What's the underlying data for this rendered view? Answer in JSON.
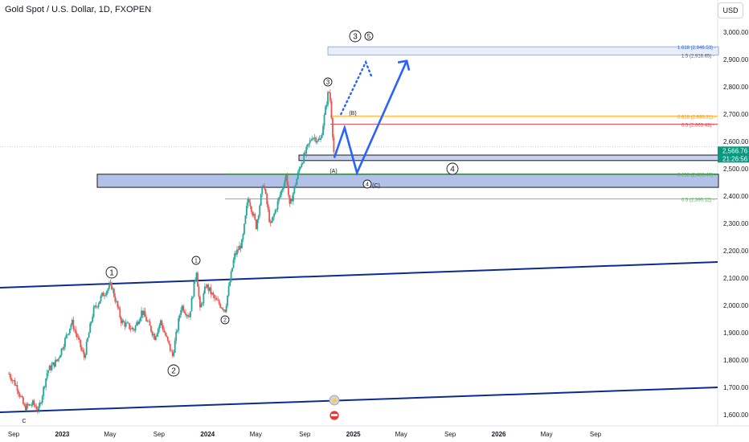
{
  "header": {
    "title": "Gold Spot / U.S. Dollar, 1D, FXOPEN",
    "currency_button": "USD"
  },
  "chart_data": {
    "type": "candlestick",
    "title": "Gold Spot / U.S. Dollar, 1D, FXOPEN",
    "xlabel": "",
    "ylabel": "",
    "ylim": [
      1590,
      3040
    ],
    "y_ticks": [
      "3,000.00",
      "2,900.00",
      "2,800.00",
      "2,700.00",
      "2,600.00",
      "2,500.00",
      "2,400.00",
      "2,300.00",
      "2,200.00",
      "2,100.00",
      "2,000.00",
      "1,900.00",
      "1,800.00",
      "1,700.00",
      "1,600.00"
    ],
    "y_tick_values": [
      3000,
      2900,
      2800,
      2700,
      2600,
      2500,
      2400,
      2300,
      2200,
      2100,
      2000,
      1900,
      1800,
      1700,
      1600
    ],
    "x_ticks": [
      "Sep",
      "2023",
      "May",
      "Sep",
      "2024",
      "May",
      "Sep",
      "2025",
      "May",
      "Sep",
      "2026",
      "May",
      "Sep"
    ],
    "x_tick_dates": [
      "2022-09-01",
      "2023-01-01",
      "2023-05-01",
      "2023-09-01",
      "2024-01-01",
      "2024-05-01",
      "2024-09-01",
      "2025-01-01",
      "2025-05-01",
      "2025-09-01",
      "2026-01-01",
      "2026-05-01",
      "2026-09-01"
    ],
    "price_path": [
      [
        "2022-08-20",
        1750
      ],
      [
        "2022-09-10",
        1700
      ],
      [
        "2022-09-28",
        1625
      ],
      [
        "2022-10-20",
        1640
      ],
      [
        "2022-11-03",
        1618
      ],
      [
        "2022-11-25",
        1760
      ],
      [
        "2022-12-20",
        1800
      ],
      [
        "2023-01-25",
        1940
      ],
      [
        "2023-02-25",
        1810
      ],
      [
        "2023-03-20",
        1980
      ],
      [
        "2023-04-13",
        2040
      ],
      [
        "2023-05-04",
        2075
      ],
      [
        "2023-05-30",
        1940
      ],
      [
        "2023-06-30",
        1910
      ],
      [
        "2023-07-20",
        1980
      ],
      [
        "2023-08-21",
        1885
      ],
      [
        "2023-09-05",
        1940
      ],
      [
        "2023-10-05",
        1815
      ],
      [
        "2023-10-27",
        2000
      ],
      [
        "2023-11-16",
        1960
      ],
      [
        "2023-12-04",
        2130
      ],
      [
        "2023-12-13",
        1980
      ],
      [
        "2023-12-28",
        2075
      ],
      [
        "2024-01-20",
        2020
      ],
      [
        "2024-02-14",
        1985
      ],
      [
        "2024-03-08",
        2180
      ],
      [
        "2024-03-28",
        2230
      ],
      [
        "2024-04-12",
        2400
      ],
      [
        "2024-05-02",
        2290
      ],
      [
        "2024-05-20",
        2450
      ],
      [
        "2024-06-07",
        2290
      ],
      [
        "2024-07-17",
        2480
      ],
      [
        "2024-07-25",
        2360
      ],
      [
        "2024-08-20",
        2510
      ],
      [
        "2024-09-20",
        2620
      ],
      [
        "2024-10-10",
        2600
      ],
      [
        "2024-10-31",
        2790
      ],
      [
        "2024-11-05",
        2740
      ],
      [
        "2024-11-14",
        2540
      ]
    ],
    "levels": [
      {
        "label": "1.618 (2,946.53)",
        "value": 2946.53
      },
      {
        "label": "1.5 (2,916.65)",
        "value": 2916.65
      },
      {
        "label": "0.618 (2,693.31)",
        "value": 2693.31
      },
      {
        "label": "0.5 (2,663.43)",
        "value": 2663.43
      },
      {
        "label": "0.618 (2,481.49)",
        "value": 2481.49
      },
      {
        "label": "0.5 (2,390.12)",
        "value": 2390.12
      }
    ],
    "current_price": {
      "value": 2566.76,
      "label": "2,566.76",
      "countdown": "21:26:56"
    },
    "wave_labels": [
      "3",
      "5",
      "3",
      "(B)",
      "(A)",
      "4",
      "4",
      "(C)",
      "1",
      "1",
      "2",
      "2",
      "C"
    ],
    "forecast_path": [
      [
        "2024-11-14",
        2540
      ],
      [
        "2024-12-10",
        2650
      ],
      [
        "2025-01-10",
        2485
      ],
      [
        "2025-05-15",
        2895
      ],
      [
        "2025-05-25",
        2860
      ]
    ],
    "dotted_path": [
      [
        "2024-12-01",
        2700
      ],
      [
        "2025-02-01",
        2890
      ],
      [
        "2025-02-15",
        2840
      ]
    ],
    "colors": {
      "up": "#26a69a",
      "down": "#ef5350",
      "channel": "#0d2b8f",
      "forecast": "#2962ff",
      "zone": "#b2c1e8",
      "orange": "#ff9800",
      "red": "#f23645",
      "green": "#4caf50",
      "price_tag": "#089981"
    }
  }
}
